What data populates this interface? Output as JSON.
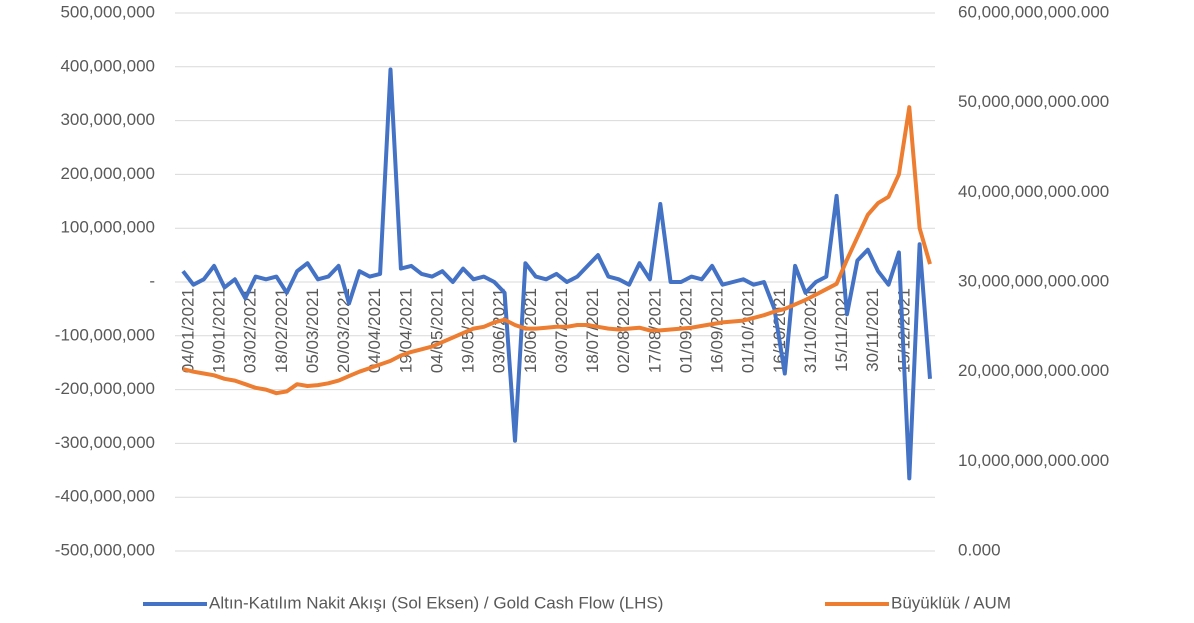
{
  "chart_data": {
    "type": "line",
    "categories": [
      "04/01/2021",
      null,
      null,
      "19/01/2021",
      null,
      null,
      "03/02/2021",
      null,
      null,
      "18/02/2021",
      null,
      null,
      "05/03/2021",
      null,
      null,
      "20/03/2021",
      null,
      null,
      "04/04/2021",
      null,
      null,
      "19/04/2021",
      null,
      null,
      "04/05/2021",
      null,
      null,
      "19/05/2021",
      null,
      null,
      "03/06/2021",
      null,
      null,
      "18/06/2021",
      null,
      null,
      "03/07/2021",
      null,
      null,
      "18/07/2021",
      null,
      null,
      "02/08/2021",
      null,
      null,
      "17/08/2021",
      null,
      null,
      "01/09/2021",
      null,
      null,
      "16/09/2021",
      null,
      null,
      "01/10/2021",
      null,
      null,
      "16/10/2021",
      null,
      null,
      "31/10/2021",
      null,
      null,
      "15/11/2021",
      null,
      null,
      "30/11/2021",
      null,
      null,
      "15/12/2021",
      null,
      null,
      null
    ],
    "series": [
      {
        "name": "Altın-Katılım Nakit Akışı (Sol Eksen) / Gold Cash Flow (LHS)",
        "color": "#4472c4",
        "values": [
          20000000,
          -5000000,
          5000000,
          30000000,
          -10000000,
          5000000,
          -30000000,
          10000000,
          5000000,
          10000000,
          -20000000,
          20000000,
          35000000,
          5000000,
          10000000,
          30000000,
          -40000000,
          20000000,
          10000000,
          15000000,
          395000000,
          25000000,
          30000000,
          15000000,
          10000000,
          20000000,
          0,
          25000000,
          5000000,
          10000000,
          0,
          -20000000,
          -295000000,
          35000000,
          10000000,
          5000000,
          15000000,
          0,
          10000000,
          30000000,
          50000000,
          10000000,
          5000000,
          -5000000,
          35000000,
          5000000,
          145000000,
          0,
          0,
          10000000,
          5000000,
          30000000,
          -5000000,
          0,
          5000000,
          -5000000,
          0,
          -50000000,
          -170000000,
          30000000,
          -20000000,
          0,
          10000000,
          160000000,
          -60000000,
          40000000,
          60000000,
          20000000,
          -5000000,
          55000000,
          -365000000,
          70000000,
          -180000000
        ]
      },
      {
        "name": "Büyüklük / AUM",
        "color": "#ed7d31",
        "axis": "y2",
        "values": [
          20300000000000,
          20000000000000,
          19800000000000,
          19600000000000,
          19200000000000,
          19000000000000,
          18600000000000,
          18200000000000,
          18000000000000,
          17600000000000,
          17800000000000,
          18600000000000,
          18400000000000,
          18500000000000,
          18700000000000,
          19000000000000,
          19500000000000,
          20000000000000,
          20400000000000,
          20800000000000,
          21200000000000,
          21800000000000,
          22200000000000,
          22500000000000,
          22800000000000,
          23300000000000,
          23800000000000,
          24300000000000,
          24800000000000,
          25000000000000,
          25500000000000,
          25800000000000,
          25200000000000,
          24800000000000,
          24800000000000,
          24900000000000,
          25000000000000,
          25000000000000,
          25200000000000,
          25200000000000,
          25000000000000,
          24800000000000,
          24700000000000,
          24800000000000,
          24900000000000,
          24600000000000,
          24600000000000,
          24700000000000,
          24800000000000,
          24900000000000,
          25100000000000,
          25300000000000,
          25500000000000,
          25600000000000,
          25700000000000,
          26000000000000,
          26300000000000,
          26700000000000,
          27000000000000,
          27500000000000,
          28000000000000,
          28600000000000,
          29200000000000,
          29800000000000,
          32500000000000,
          35000000000000,
          37500000000000,
          38800000000000,
          39500000000000,
          42000000000000,
          49500000000000,
          36000000000000,
          32000000000000
        ]
      }
    ],
    "ylim": [
      -500000000,
      500000000
    ],
    "yticks": [
      {
        "value": -500000000,
        "label": "-500,000,000"
      },
      {
        "value": -400000000,
        "label": "-400,000,000"
      },
      {
        "value": -300000000,
        "label": "-300,000,000"
      },
      {
        "value": -200000000,
        "label": "-200,000,000"
      },
      {
        "value": -100000000,
        "label": "-100,000,000"
      },
      {
        "value": 0,
        "label": "-"
      },
      {
        "value": 100000000,
        "label": "100,000,000"
      },
      {
        "value": 200000000,
        "label": "200,000,000"
      },
      {
        "value": 300000000,
        "label": "300,000,000"
      },
      {
        "value": 400000000,
        "label": "400,000,000"
      },
      {
        "value": 500000000,
        "label": "500,000,000"
      }
    ],
    "y2lim": [
      0,
      60000000000000
    ],
    "y2ticks": [
      {
        "value": 0,
        "label": "0.000"
      },
      {
        "value": 10000000000000,
        "label": "10,000,000,000.000"
      },
      {
        "value": 20000000000000,
        "label": "20,000,000,000.000"
      },
      {
        "value": 30000000000000,
        "label": "30,000,000,000.000"
      },
      {
        "value": 40000000000000,
        "label": "40,000,000,000.000"
      },
      {
        "value": 50000000000000,
        "label": "50,000,000,000.000"
      },
      {
        "value": 60000000000000,
        "label": "60,000,000,000.000"
      }
    ],
    "grid": true,
    "legend": "bottom"
  }
}
